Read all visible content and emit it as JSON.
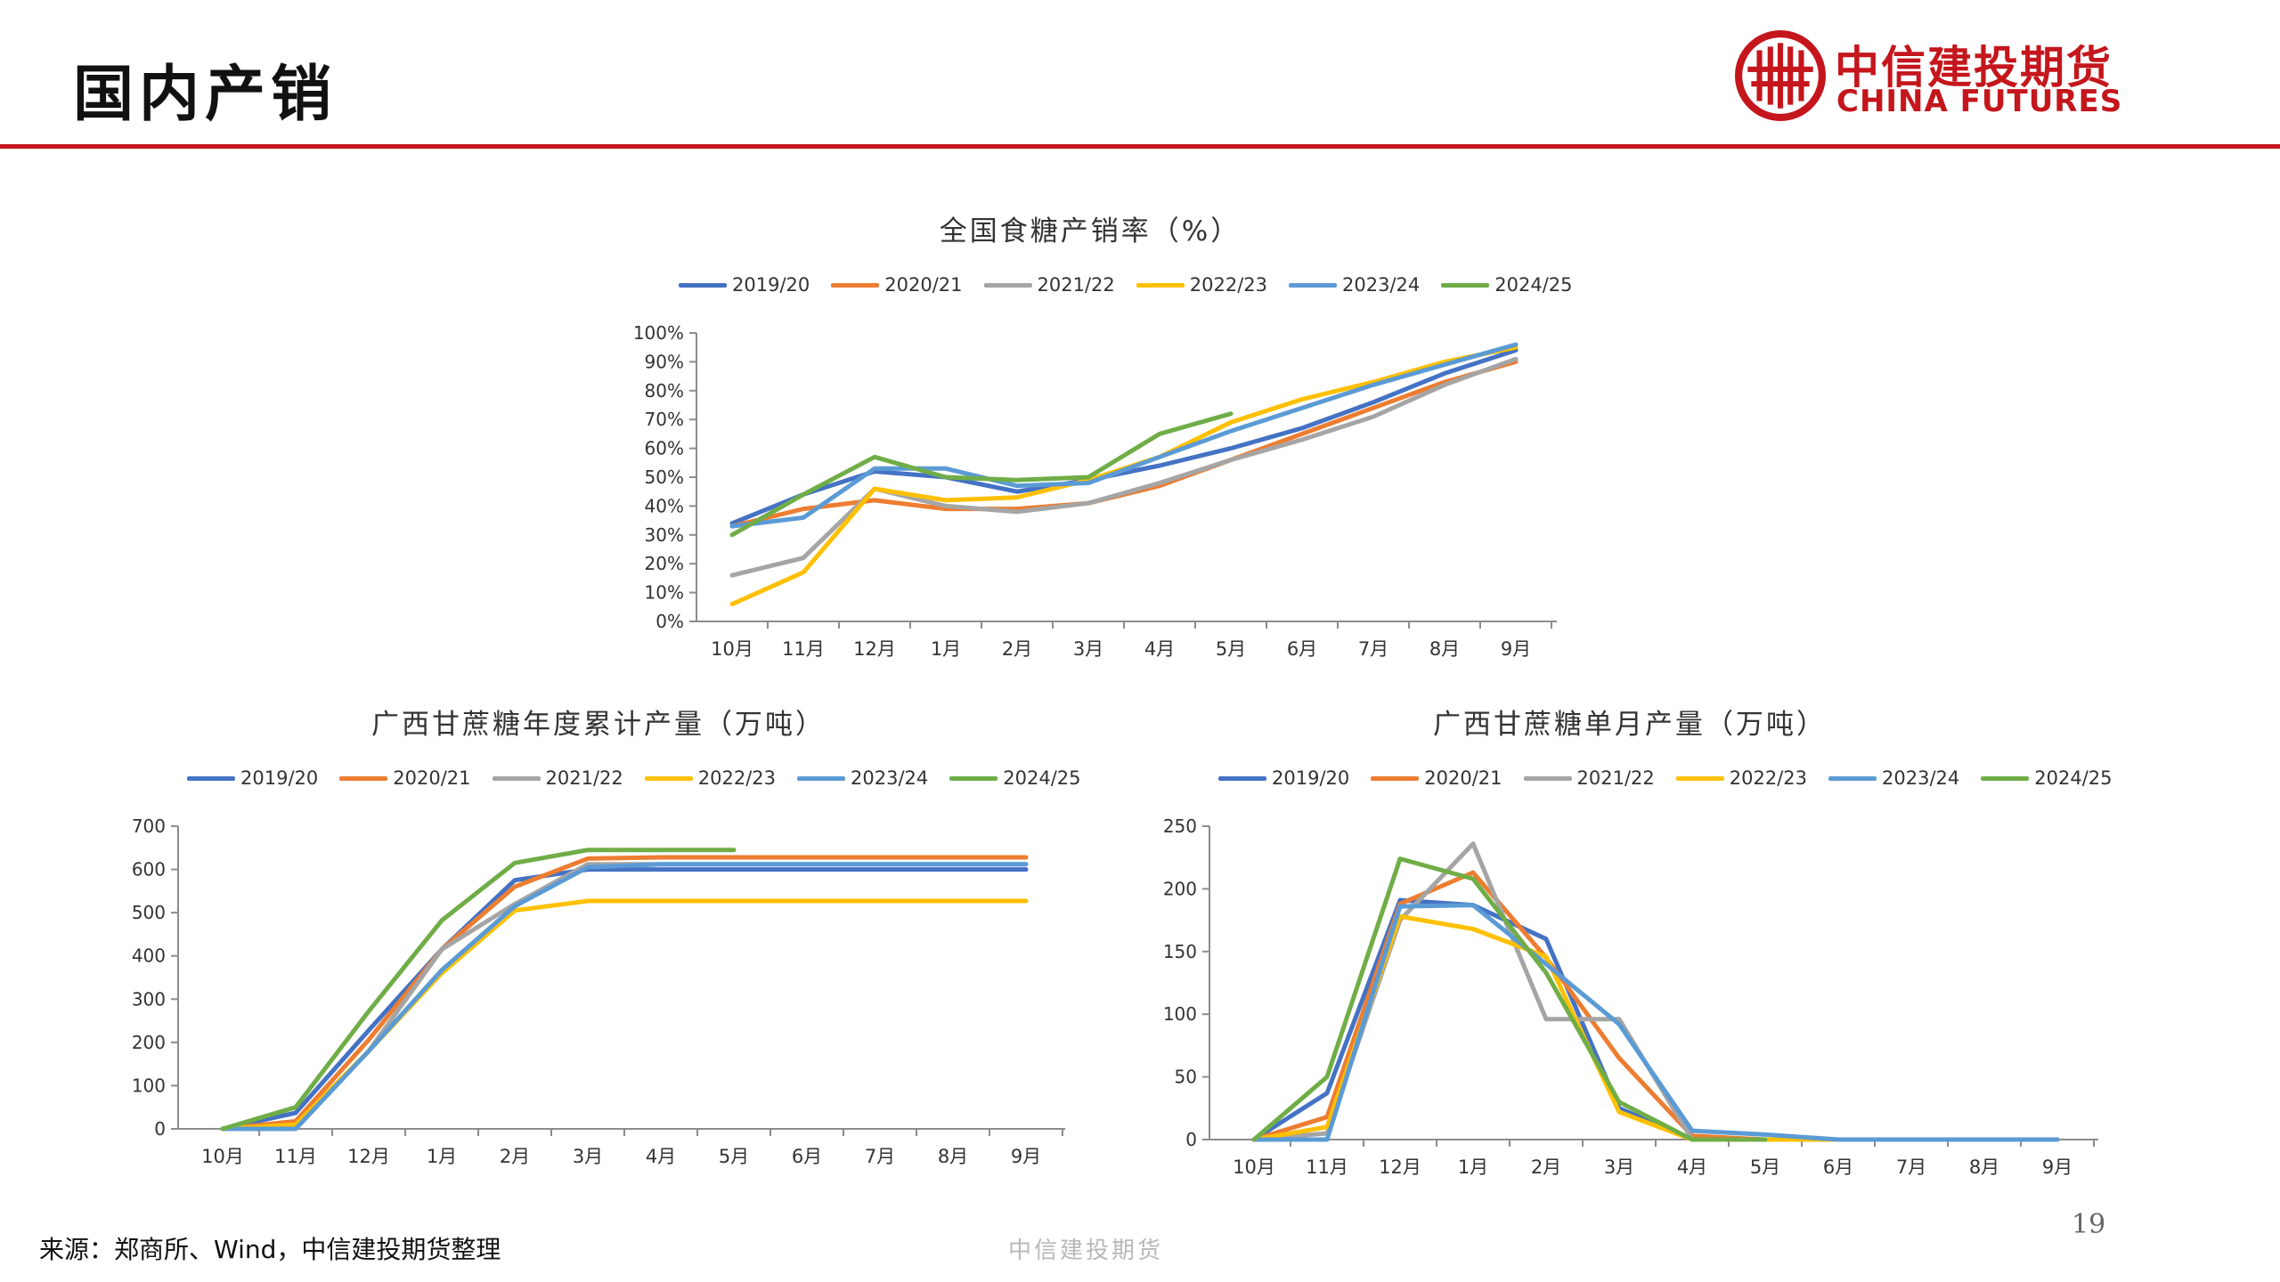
{
  "page": {
    "title": "国内产销",
    "brand_cn": "中信建投期货",
    "brand_en": "CHINA FUTURES",
    "source": "来源：郑商所、Wind，中信建投期货整理",
    "footer_brand": "中信建投期货",
    "page_number": "19"
  },
  "colors": {
    "brand_red": "#c4161c",
    "series": [
      "#4472c4",
      "#ed7d31",
      "#a5a5a5",
      "#ffc000",
      "#5b9bd5",
      "#70ad47"
    ]
  },
  "chart_data": [
    {
      "type": "line",
      "title": "全国食糖产销率（%）",
      "legend_position": "top",
      "categories": [
        "10月",
        "11月",
        "12月",
        "1月",
        "2月",
        "3月",
        "4月",
        "5月",
        "6月",
        "7月",
        "8月",
        "9月"
      ],
      "y_ticks": [
        "0%",
        "10%",
        "20%",
        "30%",
        "40%",
        "50%",
        "60%",
        "70%",
        "80%",
        "90%",
        "100%"
      ],
      "ylim": [
        0,
        100
      ],
      "series": [
        {
          "name": "2019/20",
          "values": [
            34,
            44,
            52,
            50,
            45,
            49,
            54,
            60,
            67,
            76,
            86,
            94
          ]
        },
        {
          "name": "2020/21",
          "values": [
            33,
            39,
            42,
            39,
            39,
            41,
            47,
            56,
            65,
            74,
            83,
            90
          ]
        },
        {
          "name": "2021/22",
          "values": [
            16,
            22,
            46,
            40,
            38,
            41,
            48,
            56,
            63,
            71,
            82,
            91
          ]
        },
        {
          "name": "2022/23",
          "values": [
            6,
            17,
            46,
            42,
            43,
            49,
            57,
            69,
            77,
            83,
            90,
            95
          ]
        },
        {
          "name": "2023/24",
          "values": [
            33,
            36,
            53,
            53,
            47,
            48,
            57,
            66,
            74,
            82,
            89,
            96
          ]
        },
        {
          "name": "2024/25",
          "values": [
            30,
            44,
            57,
            50,
            49,
            50,
            65,
            72,
            null,
            null,
            null,
            null
          ]
        }
      ]
    },
    {
      "type": "line",
      "title": "广西甘蔗糖年度累计产量（万吨）",
      "legend_position": "top",
      "categories": [
        "10月",
        "11月",
        "12月",
        "1月",
        "2月",
        "3月",
        "4月",
        "5月",
        "6月",
        "7月",
        "8月",
        "9月"
      ],
      "y_ticks": [
        "0",
        "100",
        "200",
        "300",
        "400",
        "500",
        "600",
        "700"
      ],
      "ylim": [
        0,
        700
      ],
      "series": [
        {
          "name": "2019/20",
          "values": [
            0,
            37,
            228,
            415,
            575,
            600,
            600,
            600,
            600,
            600,
            600,
            600
          ]
        },
        {
          "name": "2020/21",
          "values": [
            0,
            18,
            206,
            415,
            560,
            625,
            628,
            628,
            628,
            628,
            628,
            628
          ]
        },
        {
          "name": "2021/22",
          "values": [
            0,
            5,
            180,
            415,
            520,
            612,
            612,
            612,
            612,
            612,
            612,
            612
          ]
        },
        {
          "name": "2022/23",
          "values": [
            0,
            10,
            180,
            360,
            505,
            527,
            527,
            527,
            527,
            527,
            527,
            527
          ]
        },
        {
          "name": "2023/24",
          "values": [
            0,
            0,
            180,
            367,
            515,
            605,
            612,
            612,
            612,
            612,
            612,
            612
          ]
        },
        {
          "name": "2024/25",
          "values": [
            0,
            50,
            272,
            482,
            615,
            645,
            645,
            645,
            null,
            null,
            null,
            null
          ]
        }
      ]
    },
    {
      "type": "line",
      "title": "广西甘蔗糖单月产量（万吨）",
      "legend_position": "top",
      "categories": [
        "10月",
        "11月",
        "12月",
        "1月",
        "2月",
        "3月",
        "4月",
        "5月",
        "6月",
        "7月",
        "8月",
        "9月"
      ],
      "y_ticks": [
        "0",
        "50",
        "100",
        "150",
        "200",
        "250"
      ],
      "ylim": [
        0,
        250
      ],
      "series": [
        {
          "name": "2019/20",
          "values": [
            0,
            37,
            191,
            187,
            160,
            25,
            0,
            0,
            0,
            0,
            0,
            0
          ]
        },
        {
          "name": "2020/21",
          "values": [
            0,
            18,
            188,
            213,
            145,
            65,
            3,
            0,
            0,
            0,
            0,
            0
          ]
        },
        {
          "name": "2021/22",
          "values": [
            0,
            5,
            175,
            236,
            96,
            96,
            0,
            0,
            0,
            0,
            0,
            0
          ]
        },
        {
          "name": "2022/23",
          "values": [
            0,
            10,
            178,
            168,
            146,
            22,
            0,
            0,
            0,
            0,
            0,
            0
          ]
        },
        {
          "name": "2023/24",
          "values": [
            0,
            0,
            186,
            187,
            140,
            92,
            7,
            4,
            0,
            0,
            0,
            0
          ]
        },
        {
          "name": "2024/25",
          "values": [
            0,
            50,
            224,
            208,
            133,
            30,
            0,
            0,
            null,
            null,
            null,
            null
          ]
        }
      ]
    }
  ]
}
